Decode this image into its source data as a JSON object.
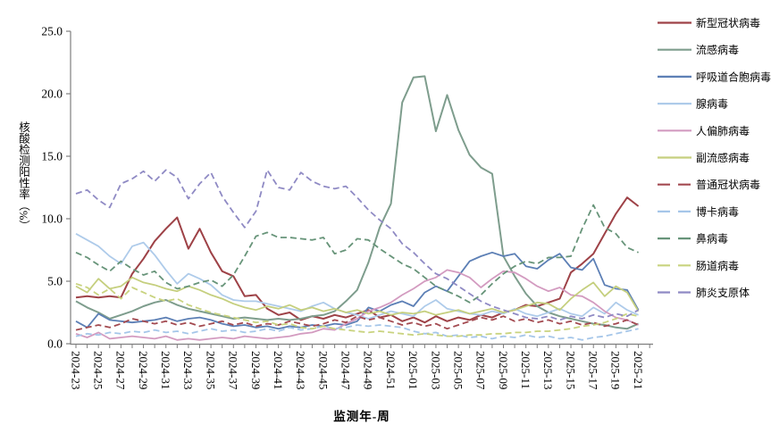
{
  "chart_data": {
    "type": "line",
    "title": "",
    "xlabel": "监测年-周",
    "ylabel": "核酸检测阳性率（%）",
    "ylim": [
      0,
      25
    ],
    "yticks": [
      0,
      5,
      10,
      15,
      20,
      25
    ],
    "grid": false,
    "legend_position": "right",
    "x_tick_label_every": 2,
    "categories": [
      "2024-23",
      "2024-24",
      "2024-25",
      "2024-26",
      "2024-27",
      "2024-28",
      "2024-29",
      "2024-30",
      "2024-31",
      "2024-32",
      "2024-33",
      "2024-34",
      "2024-35",
      "2024-36",
      "2024-37",
      "2024-38",
      "2024-39",
      "2024-40",
      "2024-41",
      "2024-42",
      "2024-43",
      "2024-44",
      "2024-45",
      "2024-46",
      "2024-47",
      "2024-48",
      "2024-49",
      "2024-50",
      "2024-51",
      "2024-52",
      "2025-01",
      "2025-02",
      "2025-03",
      "2025-04",
      "2025-05",
      "2025-06",
      "2025-07",
      "2025-08",
      "2025-09",
      "2025-10",
      "2025-11",
      "2025-12",
      "2025-13",
      "2025-14",
      "2025-15",
      "2025-16",
      "2025-17",
      "2025-18",
      "2025-19",
      "2025-20",
      "2025-21"
    ],
    "series": [
      {
        "name": "新型冠状病毒",
        "color": "#9E4247",
        "dash": false,
        "width": 2.0,
        "values": [
          3.7,
          3.8,
          3.7,
          3.8,
          3.7,
          5.6,
          6.8,
          8.2,
          9.2,
          10.1,
          7.6,
          9.2,
          7.3,
          5.8,
          5.4,
          3.8,
          3.9,
          2.8,
          2.3,
          2.5,
          1.9,
          2.2,
          2.0,
          2.3,
          2.1,
          2.4,
          2.7,
          2.1,
          2.3,
          1.8,
          2.1,
          1.7,
          2.2,
          1.8,
          2.1,
          1.9,
          2.3,
          2.1,
          2.5,
          2.7,
          3.1,
          3.0,
          3.3,
          3.6,
          5.7,
          6.4,
          7.2,
          8.8,
          10.4,
          11.7,
          11.0
        ]
      },
      {
        "name": "流感病毒",
        "color": "#7E9D8D",
        "dash": false,
        "width": 2.0,
        "values": [
          3.4,
          2.9,
          2.5,
          2.0,
          2.3,
          2.6,
          3.0,
          3.3,
          3.5,
          3.1,
          2.8,
          2.6,
          2.4,
          2.2,
          2.0,
          2.1,
          2.0,
          1.9,
          2.0,
          1.9,
          2.0,
          2.2,
          2.3,
          2.6,
          3.4,
          4.3,
          6.5,
          9.3,
          11.2,
          19.3,
          21.3,
          21.4,
          17.0,
          19.9,
          17.1,
          15.1,
          14.1,
          13.6,
          7.0,
          5.4,
          4.0,
          3.0,
          2.5,
          2.2,
          2.0,
          1.8,
          1.6,
          1.5,
          1.3,
          1.2,
          1.6
        ]
      },
      {
        "name": "呼吸道合胞病毒",
        "color": "#5C7FB5",
        "dash": false,
        "width": 1.8,
        "values": [
          1.8,
          1.3,
          2.4,
          1.9,
          1.8,
          1.7,
          1.8,
          1.9,
          2.1,
          1.8,
          2.0,
          2.1,
          1.9,
          1.6,
          1.4,
          1.5,
          1.3,
          1.4,
          1.2,
          1.4,
          1.3,
          1.5,
          1.4,
          1.6,
          1.5,
          1.8,
          2.9,
          2.6,
          3.1,
          3.4,
          3.0,
          4.1,
          4.6,
          4.2,
          5.4,
          6.6,
          7.0,
          7.3,
          7.0,
          7.2,
          6.2,
          6.0,
          6.7,
          7.2,
          6.1,
          5.9,
          6.8,
          4.7,
          4.4,
          4.3,
          2.7
        ]
      },
      {
        "name": "腺病毒",
        "color": "#AECBEA",
        "dash": false,
        "width": 1.8,
        "values": [
          8.8,
          8.3,
          7.8,
          7.0,
          6.4,
          7.8,
          8.1,
          7.1,
          5.9,
          4.8,
          5.6,
          5.2,
          4.7,
          3.9,
          3.5,
          3.4,
          3.4,
          3.2,
          3.0,
          2.8,
          2.6,
          3.0,
          3.3,
          2.8,
          2.5,
          2.3,
          2.0,
          2.3,
          2.6,
          2.4,
          2.2,
          3.0,
          3.5,
          2.8,
          2.6,
          2.4,
          2.3,
          2.6,
          2.4,
          2.8,
          2.4,
          2.2,
          2.5,
          2.8,
          2.4,
          2.2,
          2.9,
          2.4,
          3.3,
          2.7,
          2.3
        ]
      },
      {
        "name": "人偏肺病毒",
        "color": "#D39BC0",
        "dash": false,
        "width": 1.8,
        "values": [
          0.8,
          0.5,
          0.9,
          0.4,
          0.5,
          0.6,
          0.5,
          0.4,
          0.6,
          0.3,
          0.4,
          0.3,
          0.4,
          0.5,
          0.4,
          0.6,
          0.5,
          0.4,
          0.5,
          0.6,
          0.8,
          0.9,
          1.2,
          1.1,
          1.6,
          2.0,
          2.6,
          2.9,
          3.3,
          3.9,
          4.4,
          5.0,
          5.3,
          5.9,
          5.7,
          5.3,
          4.5,
          5.2,
          5.8,
          5.7,
          5.2,
          4.6,
          4.2,
          4.5,
          3.9,
          3.8,
          3.3,
          2.6,
          2.1,
          1.9,
          1.5
        ]
      },
      {
        "name": "副流感病毒",
        "color": "#C5CF7E",
        "dash": false,
        "width": 1.8,
        "values": [
          4.6,
          4.1,
          5.2,
          4.4,
          4.6,
          5.3,
          4.9,
          4.7,
          4.4,
          4.2,
          4.6,
          4.3,
          3.9,
          3.6,
          3.2,
          2.9,
          2.7,
          3.0,
          2.8,
          3.1,
          2.7,
          2.9,
          2.6,
          2.8,
          2.5,
          2.7,
          2.4,
          2.6,
          2.3,
          2.5,
          2.4,
          2.6,
          2.3,
          2.5,
          2.7,
          2.4,
          2.6,
          2.8,
          2.5,
          2.7,
          3.0,
          3.3,
          3.2,
          2.7,
          3.6,
          4.3,
          4.9,
          3.8,
          4.6,
          4.1,
          2.6
        ]
      },
      {
        "name": "普通冠状病毒",
        "color": "#A34A50",
        "dash": true,
        "width": 1.8,
        "values": [
          1.1,
          1.3,
          1.5,
          1.3,
          1.6,
          2.0,
          1.8,
          1.6,
          1.8,
          1.5,
          1.7,
          1.4,
          1.6,
          1.8,
          1.5,
          1.7,
          1.4,
          1.6,
          1.5,
          1.8,
          1.6,
          1.4,
          1.6,
          1.9,
          1.7,
          2.2,
          1.9,
          2.1,
          1.8,
          1.5,
          1.7,
          1.4,
          1.6,
          1.2,
          1.5,
          1.8,
          2.1,
          1.9,
          2.2,
          1.8,
          2.0,
          1.7,
          1.9,
          1.6,
          1.8,
          1.5,
          1.7,
          1.4,
          1.6,
          1.9,
          1.5
        ]
      },
      {
        "name": "博卡病毒",
        "color": "#A5C6E9",
        "dash": true,
        "width": 1.8,
        "values": [
          0.6,
          0.8,
          0.7,
          0.9,
          0.8,
          1.0,
          0.9,
          1.1,
          0.9,
          1.0,
          0.8,
          1.0,
          1.2,
          1.0,
          1.1,
          0.9,
          1.0,
          1.2,
          1.0,
          1.3,
          1.1,
          1.2,
          1.4,
          1.2,
          1.3,
          1.5,
          1.4,
          1.5,
          1.4,
          1.3,
          1.0,
          0.8,
          0.9,
          0.6,
          0.7,
          0.5,
          0.6,
          0.4,
          0.6,
          0.5,
          0.7,
          0.5,
          0.6,
          0.4,
          0.5,
          0.3,
          0.5,
          0.6,
          0.8,
          1.0,
          1.2
        ]
      },
      {
        "name": "鼻病毒",
        "color": "#679479",
        "dash": true,
        "width": 1.8,
        "values": [
          7.3,
          6.9,
          6.3,
          5.8,
          6.6,
          6.0,
          5.5,
          5.8,
          4.9,
          4.4,
          4.6,
          4.9,
          5.1,
          4.6,
          5.5,
          7.0,
          8.6,
          8.9,
          8.5,
          8.5,
          8.4,
          8.3,
          8.5,
          7.2,
          7.5,
          8.4,
          8.3,
          7.6,
          7.0,
          6.4,
          6.0,
          5.3,
          4.6,
          4.2,
          3.8,
          3.3,
          3.9,
          4.8,
          5.6,
          6.2,
          6.6,
          6.4,
          6.9,
          6.9,
          7.0,
          9.2,
          11.1,
          9.3,
          8.8,
          7.7,
          7.3
        ]
      },
      {
        "name": "肠道病毒",
        "color": "#C9D37F",
        "dash": true,
        "width": 1.8,
        "values": [
          4.8,
          4.5,
          3.9,
          4.4,
          3.6,
          4.5,
          4.1,
          3.7,
          3.4,
          3.6,
          3.1,
          2.8,
          2.5,
          2.3,
          2.1,
          1.9,
          1.7,
          1.8,
          1.5,
          1.6,
          1.3,
          1.2,
          1.4,
          1.2,
          1.1,
          1.0,
          0.9,
          1.0,
          0.9,
          0.8,
          0.7,
          0.8,
          0.7,
          0.6,
          0.6,
          0.7,
          0.7,
          0.8,
          0.8,
          0.9,
          0.9,
          1.0,
          1.0,
          1.1,
          1.2,
          1.4,
          1.5,
          1.7,
          2.0,
          2.4,
          2.2
        ]
      },
      {
        "name": "肺炎支原体",
        "color": "#8F8AC4",
        "dash": true,
        "width": 1.8,
        "values": [
          12.0,
          12.3,
          11.5,
          10.9,
          12.8,
          13.2,
          13.8,
          13.0,
          13.9,
          13.3,
          11.6,
          12.8,
          13.7,
          11.8,
          10.5,
          9.3,
          10.6,
          13.9,
          12.5,
          12.3,
          13.7,
          13.0,
          12.6,
          12.4,
          12.6,
          11.7,
          10.7,
          9.9,
          9.2,
          8.0,
          7.3,
          6.4,
          5.6,
          5.2,
          4.6,
          4.0,
          3.4,
          3.0,
          2.7,
          2.4,
          2.1,
          2.0,
          2.2,
          1.9,
          2.2,
          2.0,
          2.3,
          2.1,
          2.4,
          2.2,
          2.7
        ]
      }
    ]
  }
}
